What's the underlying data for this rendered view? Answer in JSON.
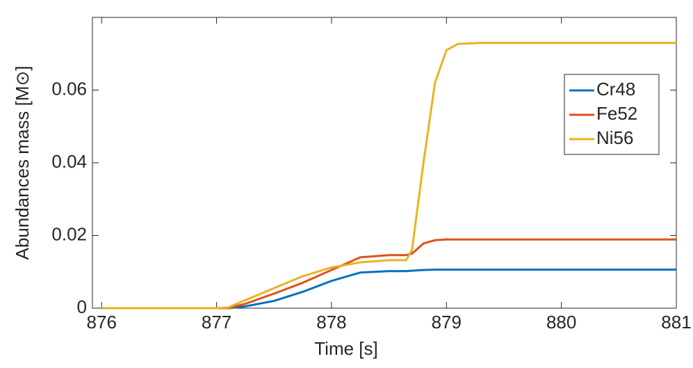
{
  "chart_data": {
    "type": "line",
    "xlabel": "Time [s]",
    "ylabel": "Abundances mass [M⊙]",
    "x": [
      876,
      877,
      877.1,
      877.25,
      877.5,
      877.75,
      878,
      878.25,
      878.5,
      878.65,
      878.7,
      878.8,
      878.9,
      879,
      879.1,
      879.3,
      880,
      881
    ],
    "series": [
      {
        "name": "Cr48",
        "color": "#0072bd",
        "values": [
          0,
          0,
          0,
          0.0005,
          0.002,
          0.0045,
          0.0075,
          0.0098,
          0.0102,
          0.0102,
          0.0103,
          0.0105,
          0.0106,
          0.0106,
          0.0106,
          0.0106,
          0.0106,
          0.0106
        ]
      },
      {
        "name": "Fe52",
        "color": "#d95319",
        "values": [
          0,
          0,
          0,
          0.0012,
          0.004,
          0.007,
          0.0105,
          0.014,
          0.0146,
          0.0146,
          0.015,
          0.0178,
          0.0187,
          0.0189,
          0.0189,
          0.0189,
          0.0189,
          0.0189
        ]
      },
      {
        "name": "Ni56",
        "color": "#edb120",
        "values": [
          0,
          0,
          0.0002,
          0.0022,
          0.0055,
          0.0088,
          0.0112,
          0.0126,
          0.0132,
          0.0132,
          0.016,
          0.04,
          0.062,
          0.071,
          0.0727,
          0.073,
          0.073,
          0.073
        ]
      }
    ],
    "xlim": [
      875.92,
      881
    ],
    "ylim": [
      0,
      0.08
    ],
    "xticks": [
      876,
      877,
      878,
      879,
      880,
      881
    ],
    "yticks": [
      0,
      0.02,
      0.04,
      0.06
    ],
    "grid": false,
    "legend": "upper right"
  }
}
